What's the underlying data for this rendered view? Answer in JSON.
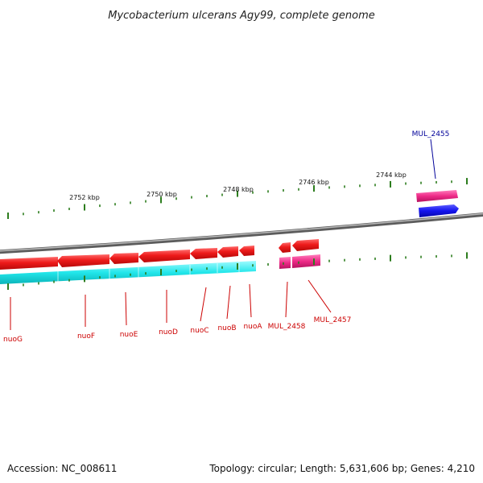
{
  "title": "Mycobacterium ulcerans Agy99, complete genome",
  "footer": {
    "accession": "Accession: NC_008611",
    "topology": "Topology: circular; Length: 5,631,606 bp; Genes: 4,210"
  },
  "colors": {
    "backbone": "#8a8a8a",
    "gene_forward": "#e8141a",
    "gene_reverse": "#22e6ea",
    "gene_pink": "#ee2a88",
    "gene_blue": "#1414ee",
    "tick": "#2d7d1e",
    "label_red": "#cc0000",
    "label_blue": "#000099"
  },
  "scale_labels": [
    "2752 kbp",
    "2750 kbp",
    "2748 kbp",
    "2746 kbp",
    "2744 kbp"
  ],
  "genes": {
    "nuoG": "nuoG",
    "nuoF": "nuoF",
    "nuoE": "nuoE",
    "nuoD": "nuoD",
    "nuoC": "nuoC",
    "nuoB": "nuoB",
    "nuoA": "nuoA",
    "MUL_2458": "MUL_2458",
    "MUL_2457": "MUL_2457",
    "MUL_2455": "MUL_2455"
  }
}
